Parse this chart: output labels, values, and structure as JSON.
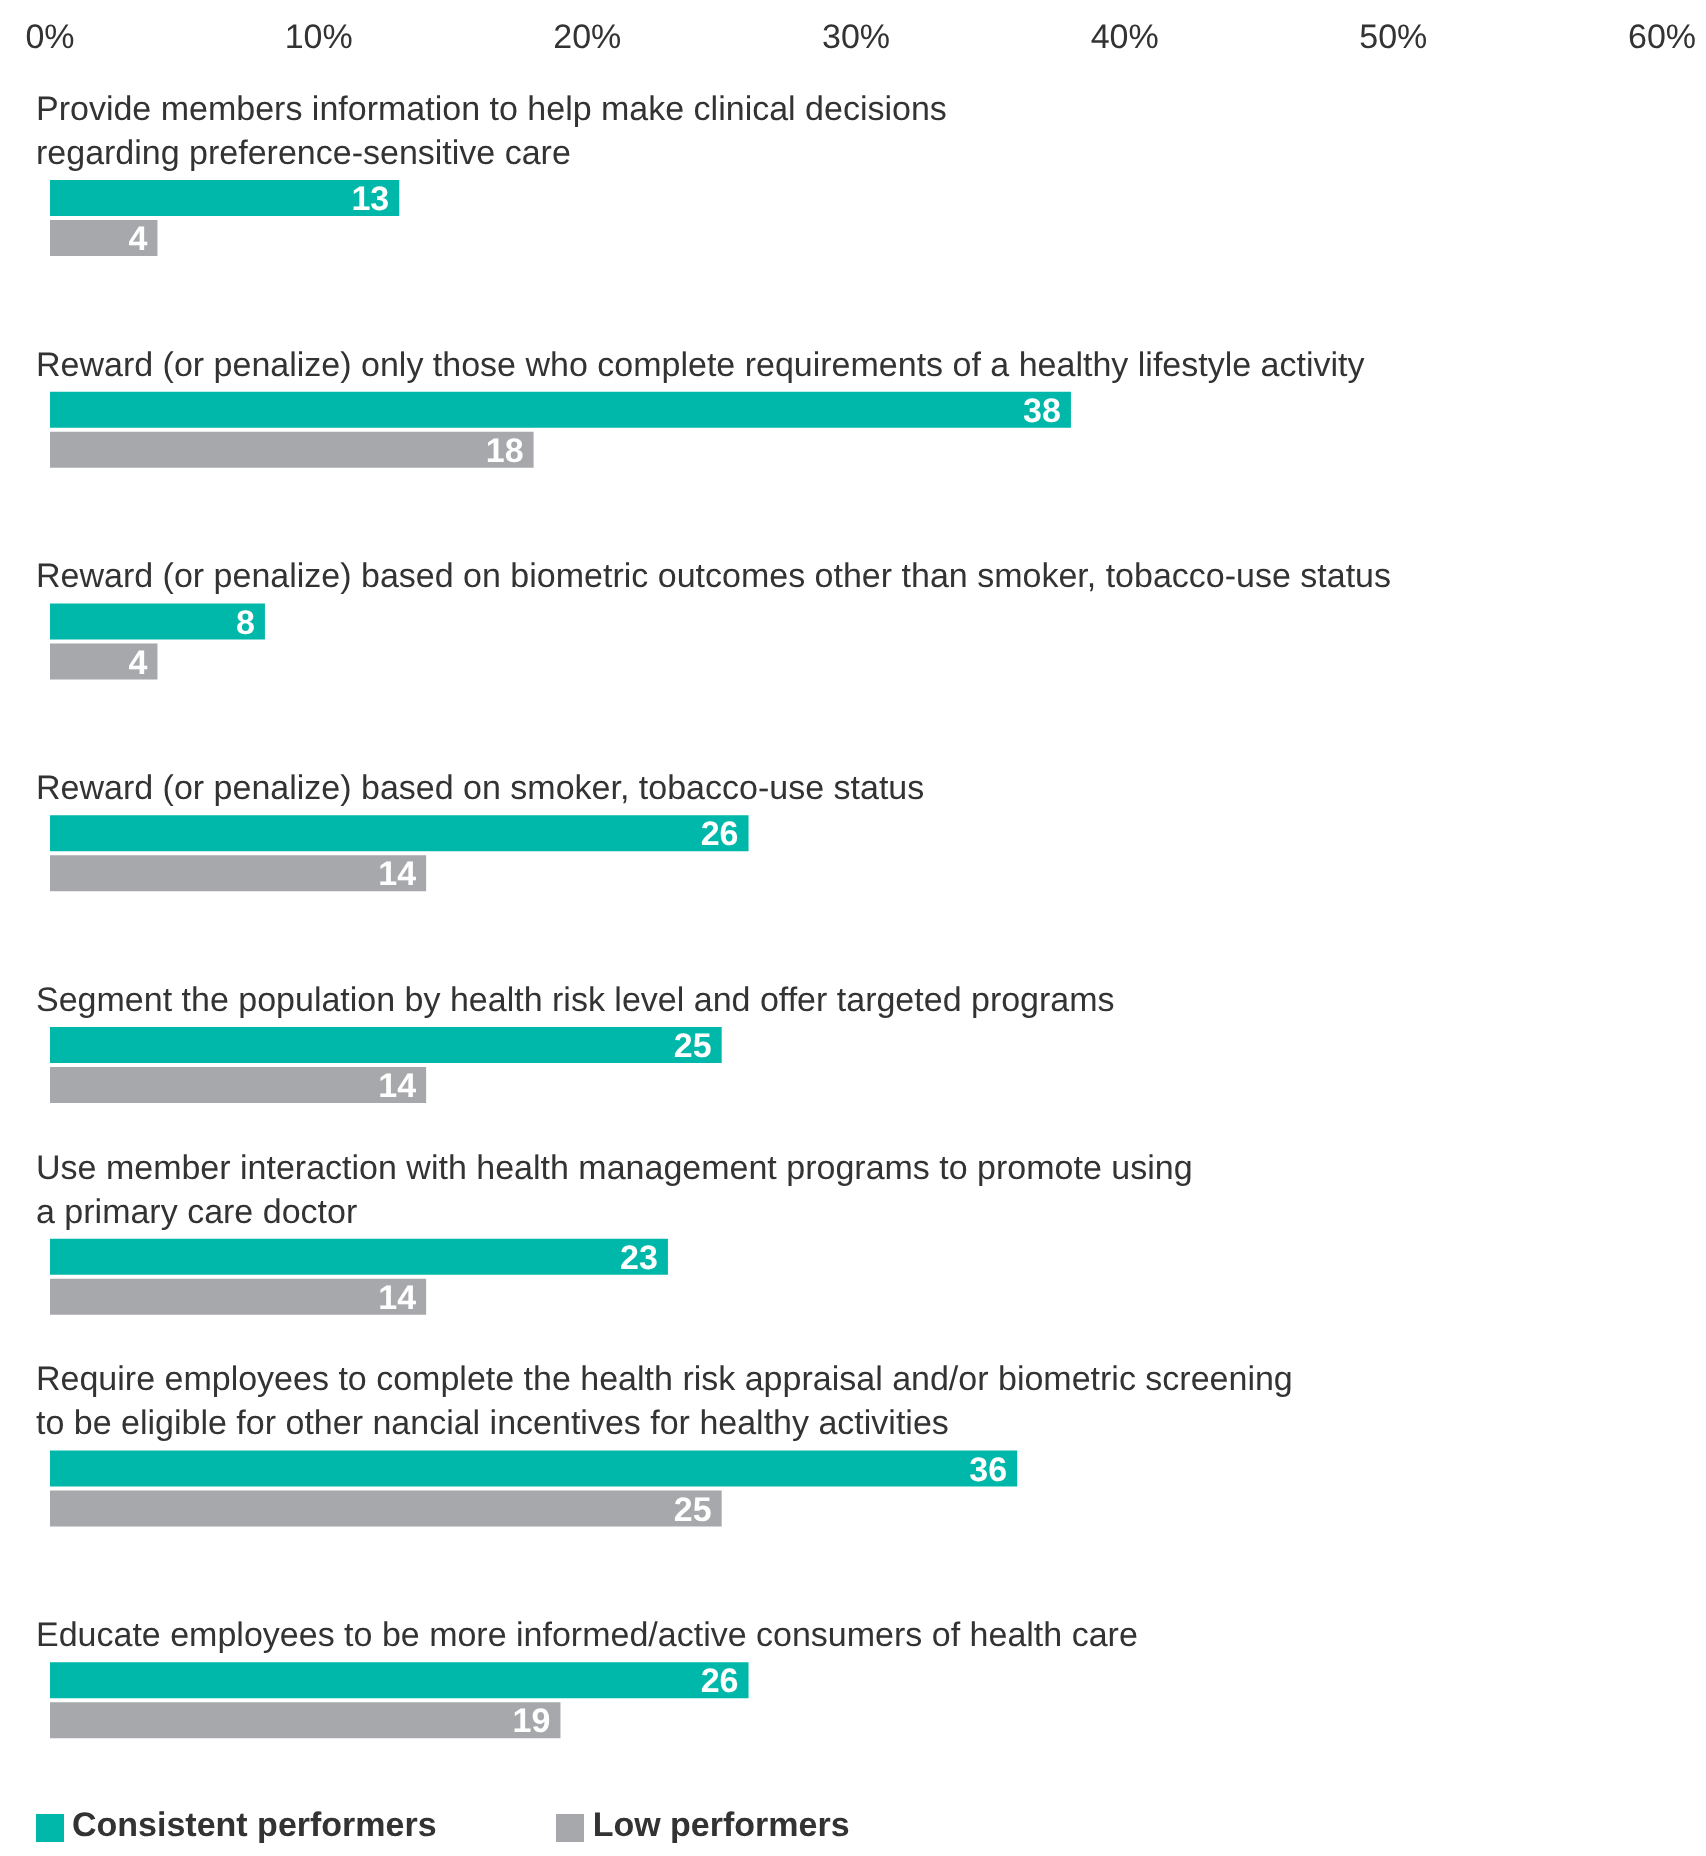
{
  "chart_data": {
    "type": "bar",
    "orientation": "horizontal",
    "categories": [
      "Provide members information to help make clinical decisions\nregarding preference-sensitive care",
      "Reward (or penalize) only those who complete requirements of a healthy lifestyle activity",
      "Reward (or penalize) based on biometric outcomes other than smoker, tobacco-use status",
      "Reward (or penalize) based on smoker, tobacco-use status",
      "Segment the population by health risk level and offer targeted programs",
      "Use member interaction with health management programs to promote using\na primary care doctor",
      "Require employees to complete the health risk appraisal and/or biometric screening\nto be eligible for other  nancial incentives for healthy activities",
      "Educate employees to be more informed/active consumers of health care"
    ],
    "series": [
      {
        "name": "Consistent performers",
        "color": "#00b8a9",
        "values": [
          13,
          38,
          8,
          26,
          25,
          23,
          36,
          26
        ]
      },
      {
        "name": "Low performers",
        "color": "#a7a8ab",
        "values": [
          4,
          18,
          4,
          14,
          14,
          14,
          25,
          19
        ]
      }
    ],
    "xlim": [
      0,
      60
    ],
    "xticks": [
      {
        "value": 0,
        "label": "0%"
      },
      {
        "value": 10,
        "label": "10%"
      },
      {
        "value": 20,
        "label": "20%"
      },
      {
        "value": 30,
        "label": "30%"
      },
      {
        "value": 40,
        "label": "40%"
      },
      {
        "value": 50,
        "label": "50%"
      },
      {
        "value": 60,
        "label": "60%"
      }
    ],
    "data_labels": true,
    "grid": false,
    "legend": "bottom left"
  }
}
